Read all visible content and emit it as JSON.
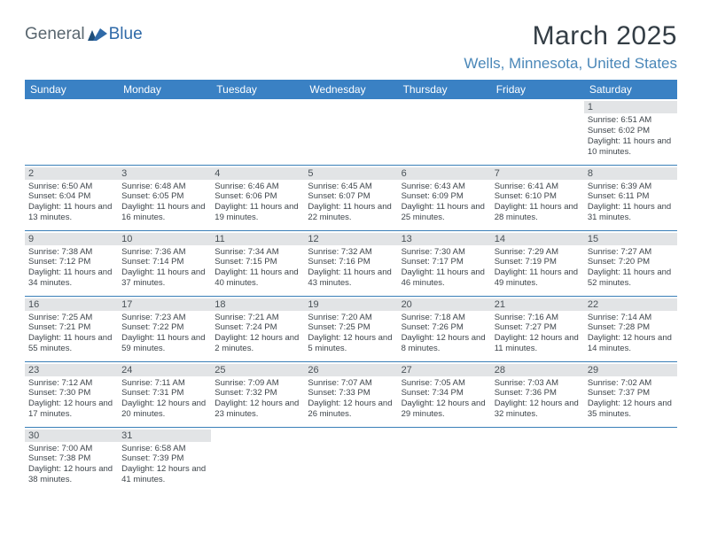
{
  "logo": {
    "word1": "General",
    "word2": "Blue",
    "word1_color": "#5a6770",
    "word2_color": "#2f6aa8",
    "flag_color": "#2f6aa8"
  },
  "title": "March 2025",
  "location": "Wells, Minnesota, United States",
  "colors": {
    "header_bg": "#3a81c4",
    "header_text": "#ffffff",
    "cell_border": "#3a7fb8",
    "daynum_bg": "#e2e4e6",
    "text": "#3e454b"
  },
  "weekdays": [
    "Sunday",
    "Monday",
    "Tuesday",
    "Wednesday",
    "Thursday",
    "Friday",
    "Saturday"
  ],
  "weeks": [
    [
      null,
      null,
      null,
      null,
      null,
      null,
      {
        "n": "1",
        "sr": "Sunrise: 6:51 AM",
        "ss": "Sunset: 6:02 PM",
        "dl": "Daylight: 11 hours and 10 minutes."
      }
    ],
    [
      {
        "n": "2",
        "sr": "Sunrise: 6:50 AM",
        "ss": "Sunset: 6:04 PM",
        "dl": "Daylight: 11 hours and 13 minutes."
      },
      {
        "n": "3",
        "sr": "Sunrise: 6:48 AM",
        "ss": "Sunset: 6:05 PM",
        "dl": "Daylight: 11 hours and 16 minutes."
      },
      {
        "n": "4",
        "sr": "Sunrise: 6:46 AM",
        "ss": "Sunset: 6:06 PM",
        "dl": "Daylight: 11 hours and 19 minutes."
      },
      {
        "n": "5",
        "sr": "Sunrise: 6:45 AM",
        "ss": "Sunset: 6:07 PM",
        "dl": "Daylight: 11 hours and 22 minutes."
      },
      {
        "n": "6",
        "sr": "Sunrise: 6:43 AM",
        "ss": "Sunset: 6:09 PM",
        "dl": "Daylight: 11 hours and 25 minutes."
      },
      {
        "n": "7",
        "sr": "Sunrise: 6:41 AM",
        "ss": "Sunset: 6:10 PM",
        "dl": "Daylight: 11 hours and 28 minutes."
      },
      {
        "n": "8",
        "sr": "Sunrise: 6:39 AM",
        "ss": "Sunset: 6:11 PM",
        "dl": "Daylight: 11 hours and 31 minutes."
      }
    ],
    [
      {
        "n": "9",
        "sr": "Sunrise: 7:38 AM",
        "ss": "Sunset: 7:12 PM",
        "dl": "Daylight: 11 hours and 34 minutes."
      },
      {
        "n": "10",
        "sr": "Sunrise: 7:36 AM",
        "ss": "Sunset: 7:14 PM",
        "dl": "Daylight: 11 hours and 37 minutes."
      },
      {
        "n": "11",
        "sr": "Sunrise: 7:34 AM",
        "ss": "Sunset: 7:15 PM",
        "dl": "Daylight: 11 hours and 40 minutes."
      },
      {
        "n": "12",
        "sr": "Sunrise: 7:32 AM",
        "ss": "Sunset: 7:16 PM",
        "dl": "Daylight: 11 hours and 43 minutes."
      },
      {
        "n": "13",
        "sr": "Sunrise: 7:30 AM",
        "ss": "Sunset: 7:17 PM",
        "dl": "Daylight: 11 hours and 46 minutes."
      },
      {
        "n": "14",
        "sr": "Sunrise: 7:29 AM",
        "ss": "Sunset: 7:19 PM",
        "dl": "Daylight: 11 hours and 49 minutes."
      },
      {
        "n": "15",
        "sr": "Sunrise: 7:27 AM",
        "ss": "Sunset: 7:20 PM",
        "dl": "Daylight: 11 hours and 52 minutes."
      }
    ],
    [
      {
        "n": "16",
        "sr": "Sunrise: 7:25 AM",
        "ss": "Sunset: 7:21 PM",
        "dl": "Daylight: 11 hours and 55 minutes."
      },
      {
        "n": "17",
        "sr": "Sunrise: 7:23 AM",
        "ss": "Sunset: 7:22 PM",
        "dl": "Daylight: 11 hours and 59 minutes."
      },
      {
        "n": "18",
        "sr": "Sunrise: 7:21 AM",
        "ss": "Sunset: 7:24 PM",
        "dl": "Daylight: 12 hours and 2 minutes."
      },
      {
        "n": "19",
        "sr": "Sunrise: 7:20 AM",
        "ss": "Sunset: 7:25 PM",
        "dl": "Daylight: 12 hours and 5 minutes."
      },
      {
        "n": "20",
        "sr": "Sunrise: 7:18 AM",
        "ss": "Sunset: 7:26 PM",
        "dl": "Daylight: 12 hours and 8 minutes."
      },
      {
        "n": "21",
        "sr": "Sunrise: 7:16 AM",
        "ss": "Sunset: 7:27 PM",
        "dl": "Daylight: 12 hours and 11 minutes."
      },
      {
        "n": "22",
        "sr": "Sunrise: 7:14 AM",
        "ss": "Sunset: 7:28 PM",
        "dl": "Daylight: 12 hours and 14 minutes."
      }
    ],
    [
      {
        "n": "23",
        "sr": "Sunrise: 7:12 AM",
        "ss": "Sunset: 7:30 PM",
        "dl": "Daylight: 12 hours and 17 minutes."
      },
      {
        "n": "24",
        "sr": "Sunrise: 7:11 AM",
        "ss": "Sunset: 7:31 PM",
        "dl": "Daylight: 12 hours and 20 minutes."
      },
      {
        "n": "25",
        "sr": "Sunrise: 7:09 AM",
        "ss": "Sunset: 7:32 PM",
        "dl": "Daylight: 12 hours and 23 minutes."
      },
      {
        "n": "26",
        "sr": "Sunrise: 7:07 AM",
        "ss": "Sunset: 7:33 PM",
        "dl": "Daylight: 12 hours and 26 minutes."
      },
      {
        "n": "27",
        "sr": "Sunrise: 7:05 AM",
        "ss": "Sunset: 7:34 PM",
        "dl": "Daylight: 12 hours and 29 minutes."
      },
      {
        "n": "28",
        "sr": "Sunrise: 7:03 AM",
        "ss": "Sunset: 7:36 PM",
        "dl": "Daylight: 12 hours and 32 minutes."
      },
      {
        "n": "29",
        "sr": "Sunrise: 7:02 AM",
        "ss": "Sunset: 7:37 PM",
        "dl": "Daylight: 12 hours and 35 minutes."
      }
    ],
    [
      {
        "n": "30",
        "sr": "Sunrise: 7:00 AM",
        "ss": "Sunset: 7:38 PM",
        "dl": "Daylight: 12 hours and 38 minutes."
      },
      {
        "n": "31",
        "sr": "Sunrise: 6:58 AM",
        "ss": "Sunset: 7:39 PM",
        "dl": "Daylight: 12 hours and 41 minutes."
      },
      null,
      null,
      null,
      null,
      null
    ]
  ]
}
